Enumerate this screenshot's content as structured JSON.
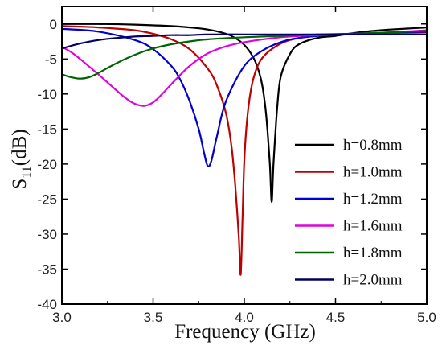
{
  "chart_data": {
    "type": "line",
    "title": "",
    "xlabel": "Frequency (GHz)",
    "ylabel": {
      "main": "S",
      "sub": "11",
      "unit": "(dB)"
    },
    "xlim": [
      3.0,
      5.0
    ],
    "ylim": [
      -40,
      2.5
    ],
    "xticks": [
      "3.0",
      "3.5",
      "4.0",
      "4.5",
      "5.0"
    ],
    "yticks": [
      "0",
      "-5",
      "-10",
      "-15",
      "-20",
      "-25",
      "-30",
      "-35",
      "-40"
    ],
    "grid": false,
    "legend_position": "right",
    "series": [
      {
        "name": "h=0.8mm",
        "color": "#000000",
        "x": [
          3.0,
          3.2,
          3.4,
          3.6,
          3.7,
          3.8,
          3.9,
          3.95,
          4.0,
          4.05,
          4.08,
          4.1,
          4.12,
          4.14,
          4.15,
          4.16,
          4.18,
          4.2,
          4.25,
          4.3,
          4.4,
          4.5,
          4.6,
          4.7,
          4.8,
          5.0
        ],
        "y": [
          0,
          0,
          -0.1,
          -0.3,
          -0.5,
          -0.8,
          -1.4,
          -2.0,
          -3.0,
          -4.8,
          -6.8,
          -9.0,
          -13.0,
          -20.0,
          -25.4,
          -20.0,
          -12.0,
          -7.5,
          -4.3,
          -2.9,
          -2.0,
          -1.7,
          -1.3,
          -1.0,
          -0.8,
          -0.5
        ]
      },
      {
        "name": "h=1.0mm",
        "color": "#c00000",
        "x": [
          3.0,
          3.2,
          3.4,
          3.5,
          3.6,
          3.7,
          3.8,
          3.85,
          3.9,
          3.93,
          3.95,
          3.97,
          3.98,
          3.99,
          4.0,
          4.02,
          4.05,
          4.1,
          4.2,
          4.3,
          4.4,
          4.5,
          4.6,
          4.7,
          5.0
        ],
        "y": [
          -0.3,
          -0.5,
          -0.9,
          -1.4,
          -2.2,
          -3.6,
          -6.4,
          -8.8,
          -12.8,
          -17.5,
          -23.0,
          -30.5,
          -35.8,
          -28.0,
          -19.5,
          -12.5,
          -7.8,
          -4.8,
          -2.8,
          -2.0,
          -1.7,
          -1.5,
          -1.4,
          -1.3,
          -1.2
        ]
      },
      {
        "name": "h=1.2mm",
        "color": "#0000d0",
        "x": [
          3.0,
          3.2,
          3.4,
          3.5,
          3.6,
          3.65,
          3.7,
          3.75,
          3.78,
          3.8,
          3.82,
          3.85,
          3.9,
          4.0,
          4.1,
          4.2,
          4.3,
          4.5,
          4.7,
          5.0
        ],
        "y": [
          -0.7,
          -1.1,
          -2.3,
          -3.6,
          -6.0,
          -8.0,
          -11.0,
          -15.0,
          -18.5,
          -20.3,
          -19.5,
          -16.0,
          -11.0,
          -6.0,
          -3.8,
          -2.6,
          -2.0,
          -1.5,
          -1.3,
          -1.1
        ]
      },
      {
        "name": "h=1.6mm",
        "color": "#e000e0",
        "x": [
          3.0,
          3.05,
          3.1,
          3.2,
          3.3,
          3.35,
          3.4,
          3.45,
          3.5,
          3.55,
          3.6,
          3.7,
          3.8,
          3.9,
          4.0,
          4.2,
          4.4,
          4.6,
          4.8,
          5.0
        ],
        "y": [
          -3.3,
          -4.0,
          -5.0,
          -7.2,
          -9.5,
          -10.6,
          -11.4,
          -11.7,
          -11.2,
          -10.0,
          -8.6,
          -6.0,
          -4.2,
          -3.2,
          -2.6,
          -1.9,
          -1.6,
          -1.4,
          -1.2,
          -0.9
        ]
      },
      {
        "name": "h=1.8mm",
        "color": "#006400",
        "x": [
          3.0,
          3.05,
          3.1,
          3.15,
          3.2,
          3.3,
          3.4,
          3.5,
          3.6,
          3.7,
          3.8,
          4.0,
          4.2,
          4.4,
          4.6,
          4.8,
          5.0
        ],
        "y": [
          -7.2,
          -7.6,
          -7.8,
          -7.6,
          -7.0,
          -5.6,
          -4.4,
          -3.5,
          -2.9,
          -2.5,
          -2.2,
          -1.9,
          -1.7,
          -1.5,
          -1.4,
          -1.2,
          -1.0
        ]
      },
      {
        "name": "h=2.0mm",
        "color": "#000066",
        "x": [
          3.0,
          3.1,
          3.2,
          3.3,
          3.4,
          3.5,
          3.6,
          3.7,
          3.8,
          4.0,
          4.2,
          4.4,
          4.6,
          4.8,
          5.0
        ],
        "y": [
          -3.5,
          -2.8,
          -2.3,
          -2.0,
          -1.8,
          -1.7,
          -1.6,
          -1.6,
          -1.5,
          -1.5,
          -1.5,
          -1.5,
          -1.5,
          -1.5,
          -1.5
        ]
      }
    ]
  }
}
